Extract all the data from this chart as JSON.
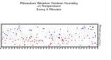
{
  "title": "Milwaukee Weather Outdoor Humidity\nvs Temperature\nEvery 5 Minutes",
  "title_fontsize": 3.2,
  "background_color": "#ffffff",
  "plot_bg_color": "#ffffff",
  "grid_color": "#aaaaaa",
  "blue_color": "#0000ff",
  "red_color": "#dd0000",
  "y_right_ticks": [
    "1",
    "2",
    "3",
    "4",
    "5",
    "6",
    "7",
    "8",
    "9",
    "10"
  ],
  "y_right_values": [
    10,
    20,
    30,
    40,
    50,
    60,
    70,
    80,
    90,
    100
  ],
  "ylim": [
    0,
    108
  ],
  "num_vert_lines": 36,
  "seed": 42
}
